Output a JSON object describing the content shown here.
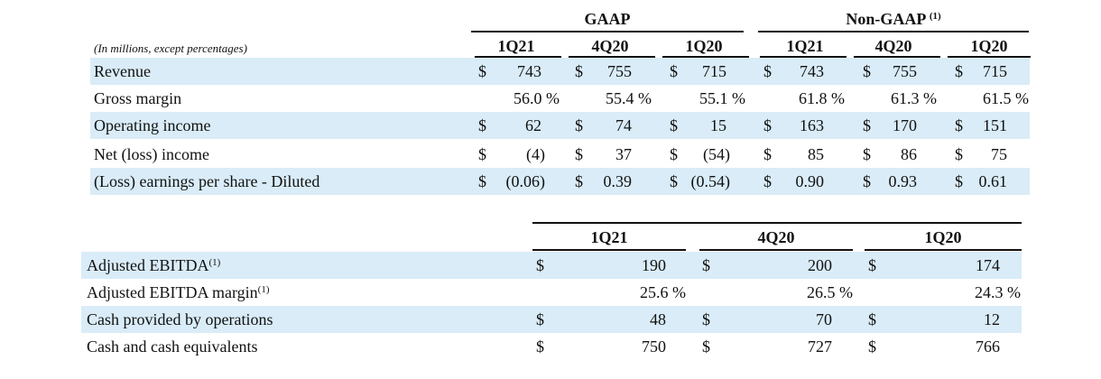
{
  "top_table": {
    "caption": "(In millions, except percentages)",
    "groups": [
      {
        "label": "GAAP",
        "note": ""
      },
      {
        "label": "Non-GAAP",
        "note": "(1)"
      }
    ],
    "periods": [
      "1Q21",
      "4Q20",
      "1Q20",
      "1Q21",
      "4Q20",
      "1Q20"
    ],
    "rows": [
      {
        "label": "Revenue",
        "cells": [
          {
            "cur": "$",
            "val": "743"
          },
          {
            "cur": "$",
            "val": "755"
          },
          {
            "cur": "$",
            "val": "715"
          },
          {
            "cur": "$",
            "val": "743"
          },
          {
            "cur": "$",
            "val": "755"
          },
          {
            "cur": "$",
            "val": "715"
          }
        ]
      },
      {
        "label": "Gross margin",
        "cells": [
          {
            "cur": "",
            "val": "56.0 %"
          },
          {
            "cur": "",
            "val": "55.4 %"
          },
          {
            "cur": "",
            "val": "55.1 %"
          },
          {
            "cur": "",
            "val": "61.8 %"
          },
          {
            "cur": "",
            "val": "61.3 %"
          },
          {
            "cur": "",
            "val": "61.5 %"
          }
        ]
      },
      {
        "label": "Operating income",
        "cells": [
          {
            "cur": "$",
            "val": "62"
          },
          {
            "cur": "$",
            "val": "74"
          },
          {
            "cur": "$",
            "val": "15"
          },
          {
            "cur": "$",
            "val": "163"
          },
          {
            "cur": "$",
            "val": "170"
          },
          {
            "cur": "$",
            "val": "151"
          }
        ]
      },
      {
        "label": "Net (loss) income",
        "cells": [
          {
            "cur": "$",
            "val": "(4)"
          },
          {
            "cur": "$",
            "val": "37"
          },
          {
            "cur": "$",
            "val": "(54)"
          },
          {
            "cur": "$",
            "val": "85"
          },
          {
            "cur": "$",
            "val": "86"
          },
          {
            "cur": "$",
            "val": "75"
          }
        ]
      },
      {
        "label": "(Loss) earnings per share - Diluted",
        "cells": [
          {
            "cur": "$",
            "val": "(0.06)"
          },
          {
            "cur": "$",
            "val": "0.39"
          },
          {
            "cur": "$",
            "val": "(0.54)"
          },
          {
            "cur": "$",
            "val": "0.90"
          },
          {
            "cur": "$",
            "val": "0.93"
          },
          {
            "cur": "$",
            "val": "0.61"
          }
        ]
      }
    ]
  },
  "bottom_table": {
    "periods": [
      "1Q21",
      "4Q20",
      "1Q20"
    ],
    "rows": [
      {
        "label": "Adjusted EBITDA",
        "note": "(1)",
        "cells": [
          {
            "cur": "$",
            "val": "190"
          },
          {
            "cur": "$",
            "val": "200"
          },
          {
            "cur": "$",
            "val": "174"
          }
        ]
      },
      {
        "label": "Adjusted EBITDA margin",
        "note": "(1)",
        "cells": [
          {
            "cur": "",
            "val": "25.6 %"
          },
          {
            "cur": "",
            "val": "26.5 %"
          },
          {
            "cur": "",
            "val": "24.3 %"
          }
        ]
      },
      {
        "label": "Cash provided by operations",
        "note": "",
        "cells": [
          {
            "cur": "$",
            "val": "48"
          },
          {
            "cur": "$",
            "val": "70"
          },
          {
            "cur": "$",
            "val": "12"
          }
        ]
      },
      {
        "label": "Cash and cash equivalents",
        "note": "",
        "cells": [
          {
            "cur": "$",
            "val": "750"
          },
          {
            "cur": "$",
            "val": "727"
          },
          {
            "cur": "$",
            "val": "766"
          }
        ]
      }
    ]
  }
}
